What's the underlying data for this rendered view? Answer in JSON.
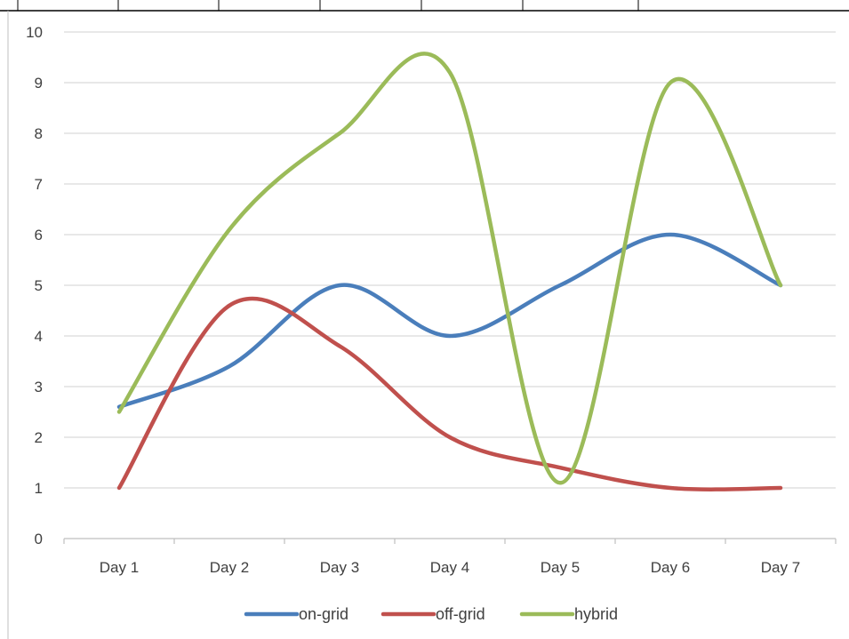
{
  "chart_data": {
    "type": "line",
    "categories": [
      "Day 1",
      "Day 2",
      "Day 3",
      "Day 4",
      "Day 5",
      "Day 6",
      "Day 7"
    ],
    "series": [
      {
        "name": "on-grid",
        "color": "#4a7ebb",
        "values": [
          2.6,
          3.4,
          5.0,
          4.0,
          5.0,
          6.0,
          5.0
        ]
      },
      {
        "name": "off-grid",
        "color": "#c0504d",
        "values": [
          1.0,
          4.6,
          3.8,
          2.0,
          1.4,
          1.0,
          1.0
        ]
      },
      {
        "name": "hybrid",
        "color": "#9bbb59",
        "values": [
          2.5,
          6.1,
          8.0,
          9.2,
          1.1,
          9.0,
          5.0
        ]
      }
    ],
    "ylim": [
      0,
      10
    ],
    "yticks": [
      "0",
      "1",
      "2",
      "3",
      "4",
      "5",
      "6",
      "7",
      "8",
      "9",
      "10"
    ],
    "grid": true,
    "smooth": true,
    "legend_position": "bottom"
  }
}
